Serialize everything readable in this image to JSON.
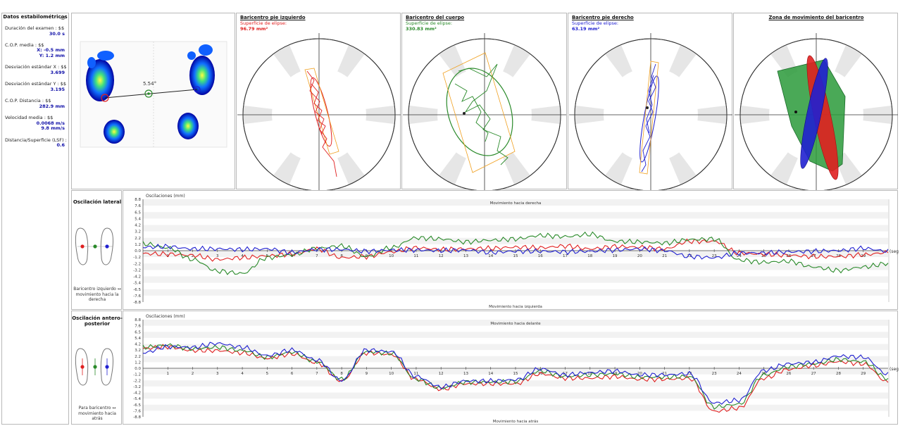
{
  "stats": {
    "title": "Datos estabilométricos",
    "items": [
      {
        "label": "Duración del examen : $$",
        "value": "30.0 s"
      },
      {
        "label": "C.O.P. media : $$",
        "value": "X: -0.5 mm"
      },
      {
        "label": "",
        "value": "Y: 1.2 mm"
      },
      {
        "label": "Desviación estándar X : $$",
        "value": "3.699"
      },
      {
        "label": "Desviación estándar Y : $$",
        "value": "3.195"
      },
      {
        "label": "C.O.P. Distancia : $$",
        "value": "282.9 mm"
      },
      {
        "label": "Velocidad media : $$",
        "value": "0.0068 m/s"
      },
      {
        "label": "",
        "value": "9.8 mm/s"
      },
      {
        "label": "Distancia/Superficie (LSF) : ",
        "value": "0.6"
      }
    ]
  },
  "footprint": {
    "angle_label": "5.54°"
  },
  "panels": {
    "left": {
      "title": "Baricentro pie izquierdo",
      "sub": "Superficie de elipse:",
      "value": "96.79 mm²",
      "color": "#e02020"
    },
    "body": {
      "title": "Baricentro del cuerpo",
      "sub": "Superficie de elipse:",
      "value": "330.83 mm²",
      "color": "#2a8a2a"
    },
    "right": {
      "title": "Baricentro pie derecho",
      "sub": "Superficie de elipse:",
      "value": "63.19 mm²",
      "color": "#2020d0"
    },
    "zone": {
      "title": "Zona de movimiento del baricentro"
    }
  },
  "lateral": {
    "title": "Oscilación lateral",
    "y_title": "Oscilaciones (mm)",
    "top_note": "Movimiento hacia derecha",
    "bottom_note": "Movimiento hacia izquierda",
    "caption": "Baricentro izquierdo ↔ movimiento hacia la derecha",
    "y_ticks": [
      "8.8",
      "7.6",
      "6.5",
      "5.4",
      "4.2",
      "3.2",
      "2.2",
      "1.2",
      "0.0",
      "-1.2",
      "-2.2",
      "-3.2",
      "-4.2",
      "-5.4",
      "-6.5",
      "-7.6",
      "-8.8"
    ],
    "x_ticks": [
      "1",
      "2",
      "3",
      "4",
      "5",
      "6",
      "7",
      "8",
      "9",
      "10",
      "11",
      "12",
      "13",
      "14",
      "15",
      "16",
      "17",
      "18",
      "19",
      "20",
      "21",
      "22",
      "23",
      "24",
      "25",
      "26",
      "27",
      "28",
      "29"
    ],
    "x_unit": "(seg)"
  },
  "antero": {
    "title": "Oscilación antero-posterior",
    "y_title": "Oscilaciones (mm)",
    "top_note": "Movimiento hacia delante",
    "bottom_note": "Movimiento hacia atrás",
    "caption": "Para baricentro ↔ movimiento hacia atrás",
    "y_ticks": [
      "8.8",
      "7.6",
      "6.5",
      "5.4",
      "4.2",
      "3.2",
      "2.2",
      "1.2",
      "0.0",
      "-1.2",
      "-2.2",
      "-3.2",
      "-4.2",
      "-5.4",
      "-6.5",
      "-7.6",
      "-8.8"
    ],
    "x_ticks": [
      "1",
      "2",
      "3",
      "4",
      "5",
      "6",
      "7",
      "8",
      "9",
      "10",
      "11",
      "12",
      "13",
      "14",
      "15",
      "16",
      "17",
      "18",
      "19",
      "20",
      "21",
      "22",
      "23",
      "24",
      "25",
      "26",
      "27",
      "28",
      "29"
    ],
    "x_unit": "(seg)"
  },
  "chart_data": [
    {
      "type": "line",
      "title": "Oscilación lateral",
      "ylabel": "Oscilaciones (mm)",
      "xlabel": "(seg)",
      "ylim": [
        -8.8,
        8.8
      ],
      "x": [
        0,
        1,
        2,
        3,
        4,
        5,
        6,
        7,
        8,
        9,
        10,
        11,
        12,
        13,
        14,
        15,
        16,
        17,
        18,
        19,
        20,
        21,
        22,
        23,
        24,
        25,
        26,
        27,
        28,
        29,
        30
      ],
      "series": [
        {
          "color": "#e02020",
          "values": [
            -0.5,
            -0.6,
            -0.8,
            -1.5,
            -1.2,
            -0.9,
            -0.6,
            0.3,
            -1.2,
            -1.0,
            -0.2,
            0.5,
            0.2,
            0.3,
            0.4,
            0.6,
            0.5,
            0.8,
            0.3,
            0.7,
            0.6,
            0.3,
            1.6,
            1.6,
            -0.4,
            -0.6,
            -0.8,
            -1.0,
            -1.0,
            -0.7,
            -0.3
          ]
        },
        {
          "color": "#2a8a2a",
          "values": [
            1.2,
            0.5,
            -1.5,
            -3.5,
            -3.9,
            -1.2,
            -0.7,
            0.4,
            0.8,
            -1.0,
            0.5,
            2.2,
            2.0,
            1.5,
            1.8,
            2.0,
            2.6,
            2.4,
            2.8,
            1.6,
            1.5,
            1.3,
            1.9,
            2.0,
            -1.6,
            -2.0,
            -1.8,
            -2.8,
            -3.4,
            -2.8,
            -2.2
          ]
        },
        {
          "color": "#2020d0",
          "values": [
            0.6,
            0.7,
            0.3,
            0.3,
            0.2,
            0.3,
            -0.3,
            0.2,
            0.2,
            -0.1,
            0.1,
            0.1,
            0.0,
            0.1,
            -0.3,
            -0.1,
            -0.1,
            -0.2,
            -0.1,
            0.1,
            0.3,
            0.0,
            -1.0,
            -1.2,
            -0.4,
            -0.4,
            -0.2,
            -0.1,
            0.0,
            0.4,
            -0.1
          ]
        }
      ]
    },
    {
      "type": "line",
      "title": "Oscilación antero-posterior",
      "ylabel": "Oscilaciones (mm)",
      "xlabel": "(seg)",
      "ylim": [
        -8.8,
        8.8
      ],
      "x": [
        0,
        1,
        2,
        3,
        4,
        5,
        6,
        7,
        8,
        9,
        10,
        11,
        12,
        13,
        14,
        15,
        16,
        17,
        18,
        19,
        20,
        21,
        22,
        23,
        24,
        25,
        26,
        27,
        28,
        29,
        30
      ],
      "series": [
        {
          "color": "#e02020",
          "values": [
            3.6,
            3.9,
            3.2,
            3.2,
            2.8,
            1.8,
            2.6,
            1.0,
            -2.3,
            2.8,
            2.5,
            -2.0,
            -3.8,
            -2.8,
            -2.8,
            -2.8,
            -1.0,
            -1.8,
            -1.8,
            -1.5,
            -2.0,
            -2.0,
            -1.8,
            -7.8,
            -7.2,
            -1.8,
            -0.2,
            0.5,
            1.2,
            0.8,
            -2.5
          ]
        },
        {
          "color": "#2a8a2a",
          "values": [
            3.8,
            4.2,
            3.5,
            3.8,
            3.2,
            2.0,
            2.9,
            1.2,
            -2.0,
            3.0,
            2.7,
            -2.0,
            -3.6,
            -2.5,
            -2.5,
            -2.4,
            -0.5,
            -1.5,
            -1.2,
            -1.0,
            -1.6,
            -1.6,
            -1.5,
            -7.0,
            -6.5,
            -1.2,
            0.3,
            0.8,
            1.6,
            1.2,
            -1.9
          ]
        },
        {
          "color": "#2020d0",
          "values": [
            2.8,
            3.9,
            3.8,
            4.5,
            3.8,
            2.3,
            3.3,
            1.5,
            -2.2,
            3.3,
            3.0,
            -1.5,
            -3.4,
            -2.3,
            -2.3,
            -2.1,
            -0.1,
            -1.2,
            -0.8,
            -0.5,
            -1.2,
            -1.2,
            -1.0,
            -6.3,
            -5.8,
            -0.4,
            0.8,
            1.1,
            2.2,
            2.0,
            -1.1
          ]
        }
      ]
    }
  ]
}
